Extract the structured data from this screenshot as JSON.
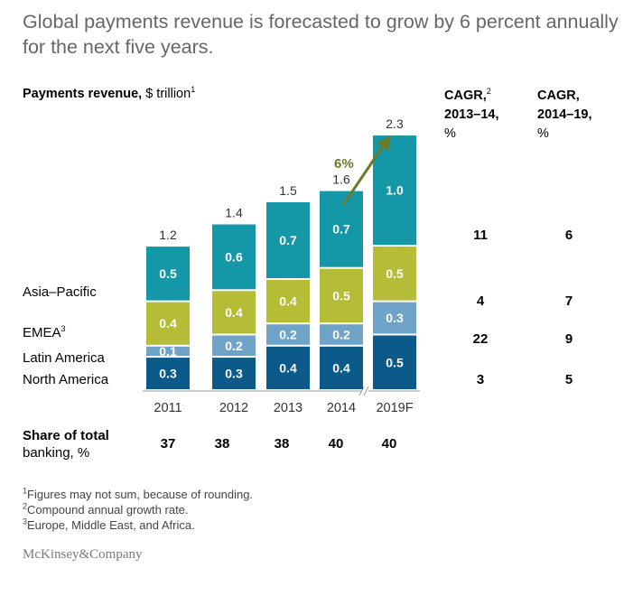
{
  "title": "Global payments revenue is forecasted to grow by 6 percent annually for the next five years.",
  "subhead": {
    "bold": "Payments revenue,",
    "rest": " $ trillion",
    "sup": "1"
  },
  "cagr_headers": [
    {
      "line1": "CAGR,",
      "sup": "2",
      "line2": "2013–14,",
      "line3": "%"
    },
    {
      "line1": "CAGR,",
      "sup": "",
      "line2": "2014–19,",
      "line3": "%"
    }
  ],
  "regions": [
    {
      "label": "Asia–Pacific",
      "sup": ""
    },
    {
      "label": "EMEA",
      "sup": "3"
    },
    {
      "label": "Latin America",
      "sup": ""
    },
    {
      "label": "North America",
      "sup": ""
    }
  ],
  "cagr_values": {
    "total": [
      "11",
      "6"
    ],
    "asia_pacific": [
      "4",
      "7"
    ],
    "emea": [
      "22",
      "9"
    ],
    "latin_america": [
      "3",
      "5"
    ]
  },
  "growth_label": "6%",
  "share": {
    "label_line1": "Share of total",
    "label_line2": "banking, %",
    "values": [
      "37",
      "38",
      "38",
      "40",
      "40"
    ]
  },
  "footnotes": [
    {
      "sup": "1",
      "text": "Figures may not sum, because of rounding."
    },
    {
      "sup": "2",
      "text": "Compound annual growth rate."
    },
    {
      "sup": "3",
      "text": "Europe, Middle East, and Africa."
    }
  ],
  "logo": "McKinsey&Company",
  "colors": {
    "north_america": "#0b5a8a",
    "latin_america": "#6fa3c7",
    "emea": "#b5bc35",
    "asia_pacific": "#1497a6",
    "arrow": "#6b7a2a",
    "axis": "#999999"
  },
  "chart_data": {
    "type": "bar",
    "stacked": true,
    "title": "Payments revenue, $ trillion",
    "categories": [
      "2011",
      "2012",
      "2013",
      "2014",
      "2019F"
    ],
    "totals": [
      "1.2",
      "1.4",
      "1.5",
      "1.6",
      "2.3"
    ],
    "series": [
      {
        "name": "North America",
        "values": [
          0.3,
          0.3,
          0.4,
          0.4,
          0.5
        ],
        "labels": [
          "0.3",
          "0.3",
          "0.4",
          "0.4",
          "0.5"
        ]
      },
      {
        "name": "Latin America",
        "values": [
          0.1,
          0.2,
          0.2,
          0.2,
          0.3
        ],
        "labels": [
          "0.1",
          "0.2",
          "0.2",
          "0.2",
          "0.3"
        ]
      },
      {
        "name": "EMEA",
        "values": [
          0.4,
          0.4,
          0.4,
          0.5,
          0.5
        ],
        "labels": [
          "0.4",
          "0.4",
          "0.4",
          "0.5",
          "0.5"
        ]
      },
      {
        "name": "Asia–Pacific",
        "values": [
          0.5,
          0.6,
          0.7,
          0.7,
          1.0
        ],
        "labels": [
          "0.5",
          "0.6",
          "0.7",
          "0.7",
          "1.0"
        ]
      }
    ],
    "axis_break_before": "2019F",
    "annotation": "6%"
  }
}
